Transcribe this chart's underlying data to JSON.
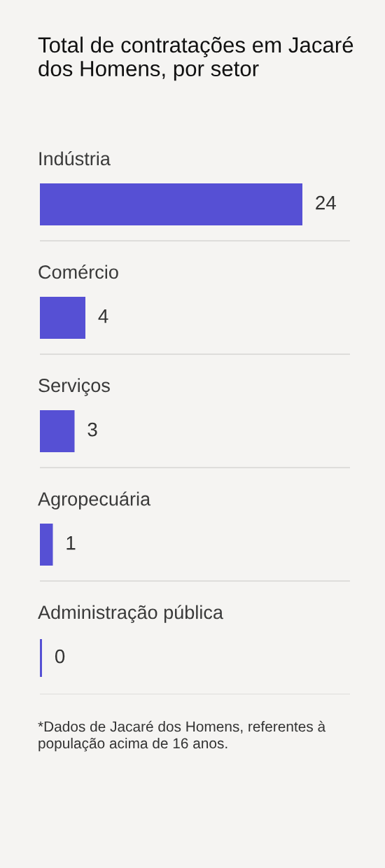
{
  "chart_data": {
    "type": "bar",
    "orientation": "horizontal",
    "title": "Total de contratações em Jacaré dos Homens, por setor",
    "categories": [
      "Indústria",
      "Comércio",
      "Serviços",
      "Agropecuária",
      "Administração pública"
    ],
    "values": [
      24,
      4,
      3,
      1,
      0
    ],
    "color": "#5650d4",
    "data_labels": true,
    "tick_labels": "y",
    "grid": "y",
    "annotations": [
      "*Dados de Jacaré dos Homens, referentes à população acima de 16 anos."
    ]
  }
}
